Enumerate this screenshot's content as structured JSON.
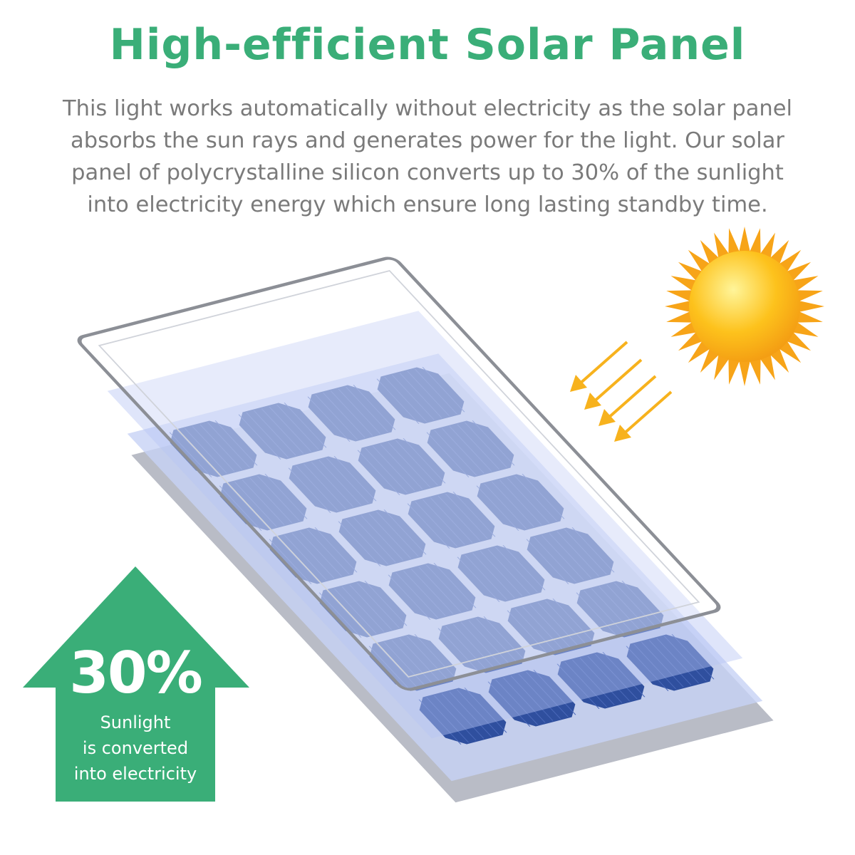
{
  "title": "High-efficient Solar Panel",
  "description": [
    "This light works automatically without electricity as the solar panel",
    "absorbs the sun rays and generates power for the light. Our solar",
    "panel of polycrystalline silicon converts up to 30% of the sunlight",
    "into electricity energy which ensure long lasting standby time."
  ],
  "badge": {
    "value": "30%",
    "lines": [
      "Sunlight",
      "is converted",
      "into electricity"
    ]
  },
  "colors": {
    "accent": "#3aae78",
    "text": "#7a7a7a",
    "cell": "#2f4f9e",
    "sun": "#fbb216"
  },
  "icons": [
    "sun-icon",
    "sunray-arrows-icon",
    "up-arrow-icon",
    "solar-panel-illustration"
  ]
}
